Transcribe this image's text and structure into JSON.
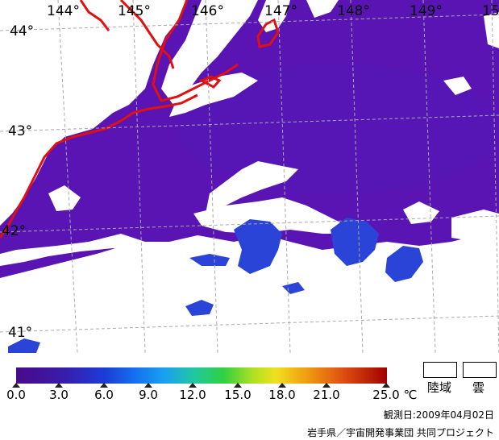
{
  "map": {
    "longitude_labels": [
      "144°",
      "145°",
      "146°",
      "147°",
      "148°",
      "149°",
      "15"
    ],
    "latitude_labels": [
      "44°",
      "43°",
      "42°",
      "41°"
    ],
    "colors": {
      "sea": "#5a14b4",
      "warm_patch": "#2a44d8",
      "cloud": "#ffffff",
      "coast": "#e01010",
      "grid": "#aaaaaa"
    }
  },
  "colorbar": {
    "ticks": [
      "0.0",
      "3.0",
      "6.0",
      "9.0",
      "12.0",
      "15.0",
      "18.0",
      "21.0",
      "25.0"
    ],
    "unit": "℃"
  },
  "legend": {
    "land": "陸域",
    "cloud": "雲"
  },
  "footer": {
    "observed": "観測日:2009年04月02日",
    "credit": "岩手県／宇宙開発事業団 共同プロジェクト"
  }
}
